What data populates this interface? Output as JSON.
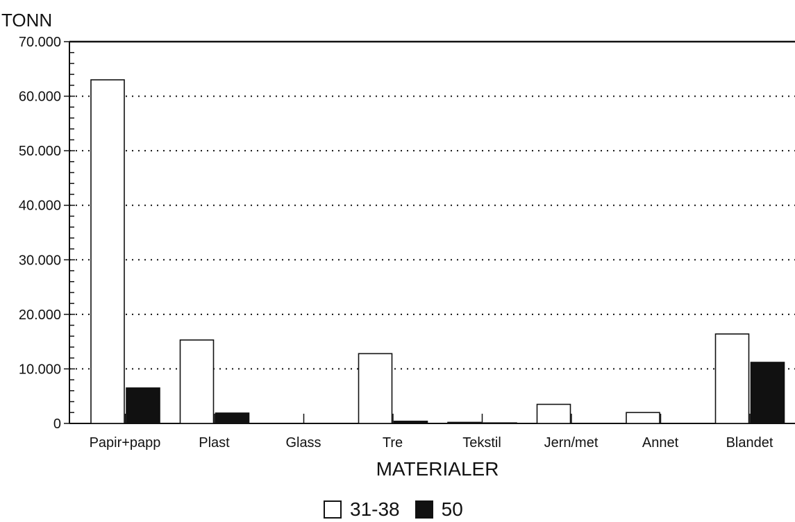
{
  "chart_data": {
    "type": "bar",
    "ylabel": "TONN",
    "xlabel": "MATERIALER",
    "categories": [
      "Papir+papp",
      "Plast",
      "Glass",
      "Tre",
      "Tekstil",
      "Jern/met",
      "Annet",
      "Blandet"
    ],
    "series": [
      {
        "name": "31-38",
        "values": [
          63000,
          15300,
          0,
          12800,
          200,
          3500,
          2000,
          16400
        ],
        "color": "#ffffff"
      },
      {
        "name": "50",
        "values": [
          6500,
          1900,
          0,
          400,
          100,
          0,
          0,
          11200
        ],
        "color": "#111111"
      }
    ],
    "ylim": [
      0,
      70000
    ],
    "yticks": [
      "0",
      "10.000",
      "20.000",
      "30.000",
      "40.000",
      "50.000",
      "60.000",
      "70.000"
    ],
    "grid": true,
    "legend_position": "bottom-center"
  }
}
